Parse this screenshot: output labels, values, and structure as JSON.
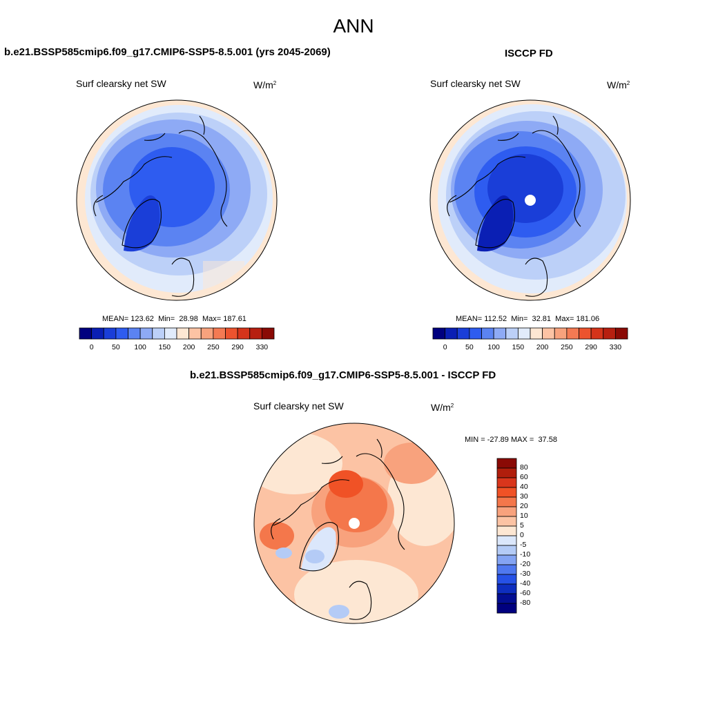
{
  "figure": {
    "title": "ANN"
  },
  "panels": [
    {
      "id": "model",
      "heading": "b.e21.BSSP585cmip6.f09_g17.CMIP6-SSP5-8.5.001 (yrs 2045-2069)",
      "field": "Surf clearsky net SW",
      "units_base": "W/m",
      "units_exp": "2",
      "stats": {
        "mean_label": "MEAN=",
        "mean": "123.62",
        "min_label": "Min=",
        "min": "28.98",
        "max_label": "Max=",
        "max": "187.61"
      }
    },
    {
      "id": "obs",
      "heading": "ISCCP FD",
      "field": "Surf clearsky net SW",
      "units_base": "W/m",
      "units_exp": "2",
      "stats": {
        "mean_label": "MEAN=",
        "mean": "112.52",
        "min_label": "Min=",
        "min": "32.81",
        "max_label": "Max=",
        "max": "181.06"
      }
    },
    {
      "id": "diff",
      "heading": "b.e21.BSSP585cmip6.f09_g17.CMIP6-SSP5-8.5.001 - ISCCP FD",
      "field": "Surf clearsky net SW",
      "units_base": "W/m",
      "units_exp": "2",
      "stats": {
        "min_label": "MIN =",
        "min": "-27.89",
        "max_label": "MAX =",
        "max": "37.58"
      }
    }
  ],
  "colorbars": {
    "absolute": {
      "tick_labels": [
        "0",
        "50",
        "100",
        "150",
        "200",
        "250",
        "290",
        "330"
      ],
      "colors": [
        "#00007f",
        "#0a1fb4",
        "#1a3ed8",
        "#2e5cf0",
        "#5b83f2",
        "#8eaaf5",
        "#bcd0f8",
        "#e1ebfb",
        "#fde7d3",
        "#fcc3a4",
        "#f8a27d",
        "#f47a53",
        "#ec532e",
        "#d5341a",
        "#b71f10",
        "#8a0a05"
      ]
    },
    "difference": {
      "levels": [
        "80",
        "60",
        "40",
        "30",
        "20",
        "10",
        "5",
        "0",
        "-5",
        "-10",
        "-20",
        "-30",
        "-40",
        "-60",
        "-80"
      ],
      "colors": [
        "#8a0a05",
        "#b01e0c",
        "#d9361c",
        "#f05226",
        "#f4774b",
        "#f8a27d",
        "#fcc3a4",
        "#fde7d3",
        "#dbe7fb",
        "#b4cbf6",
        "#84a4f3",
        "#4f78ef",
        "#2651e6",
        "#0e2ebf",
        "#030e92",
        "#00007f"
      ]
    }
  },
  "map_colors": {
    "land_line": "#000000",
    "model_levels": [
      "#e1ebfb",
      "#bcd0f8",
      "#8eaaf5",
      "#5b83f2",
      "#2e5cf0",
      "#1a3ed8"
    ],
    "obs_levels": [
      "#e1ebfb",
      "#bcd0f8",
      "#8eaaf5",
      "#5b83f2",
      "#2e5cf0",
      "#1a3ed8"
    ],
    "edge_warm": "#fde7d3",
    "diff_base": "#fcc3a4",
    "diff_warm": [
      "#f8a27d",
      "#f4774b",
      "#f05226"
    ],
    "diff_cool": [
      "#dbe7fb",
      "#b4cbf6",
      "#84a4f3"
    ]
  }
}
